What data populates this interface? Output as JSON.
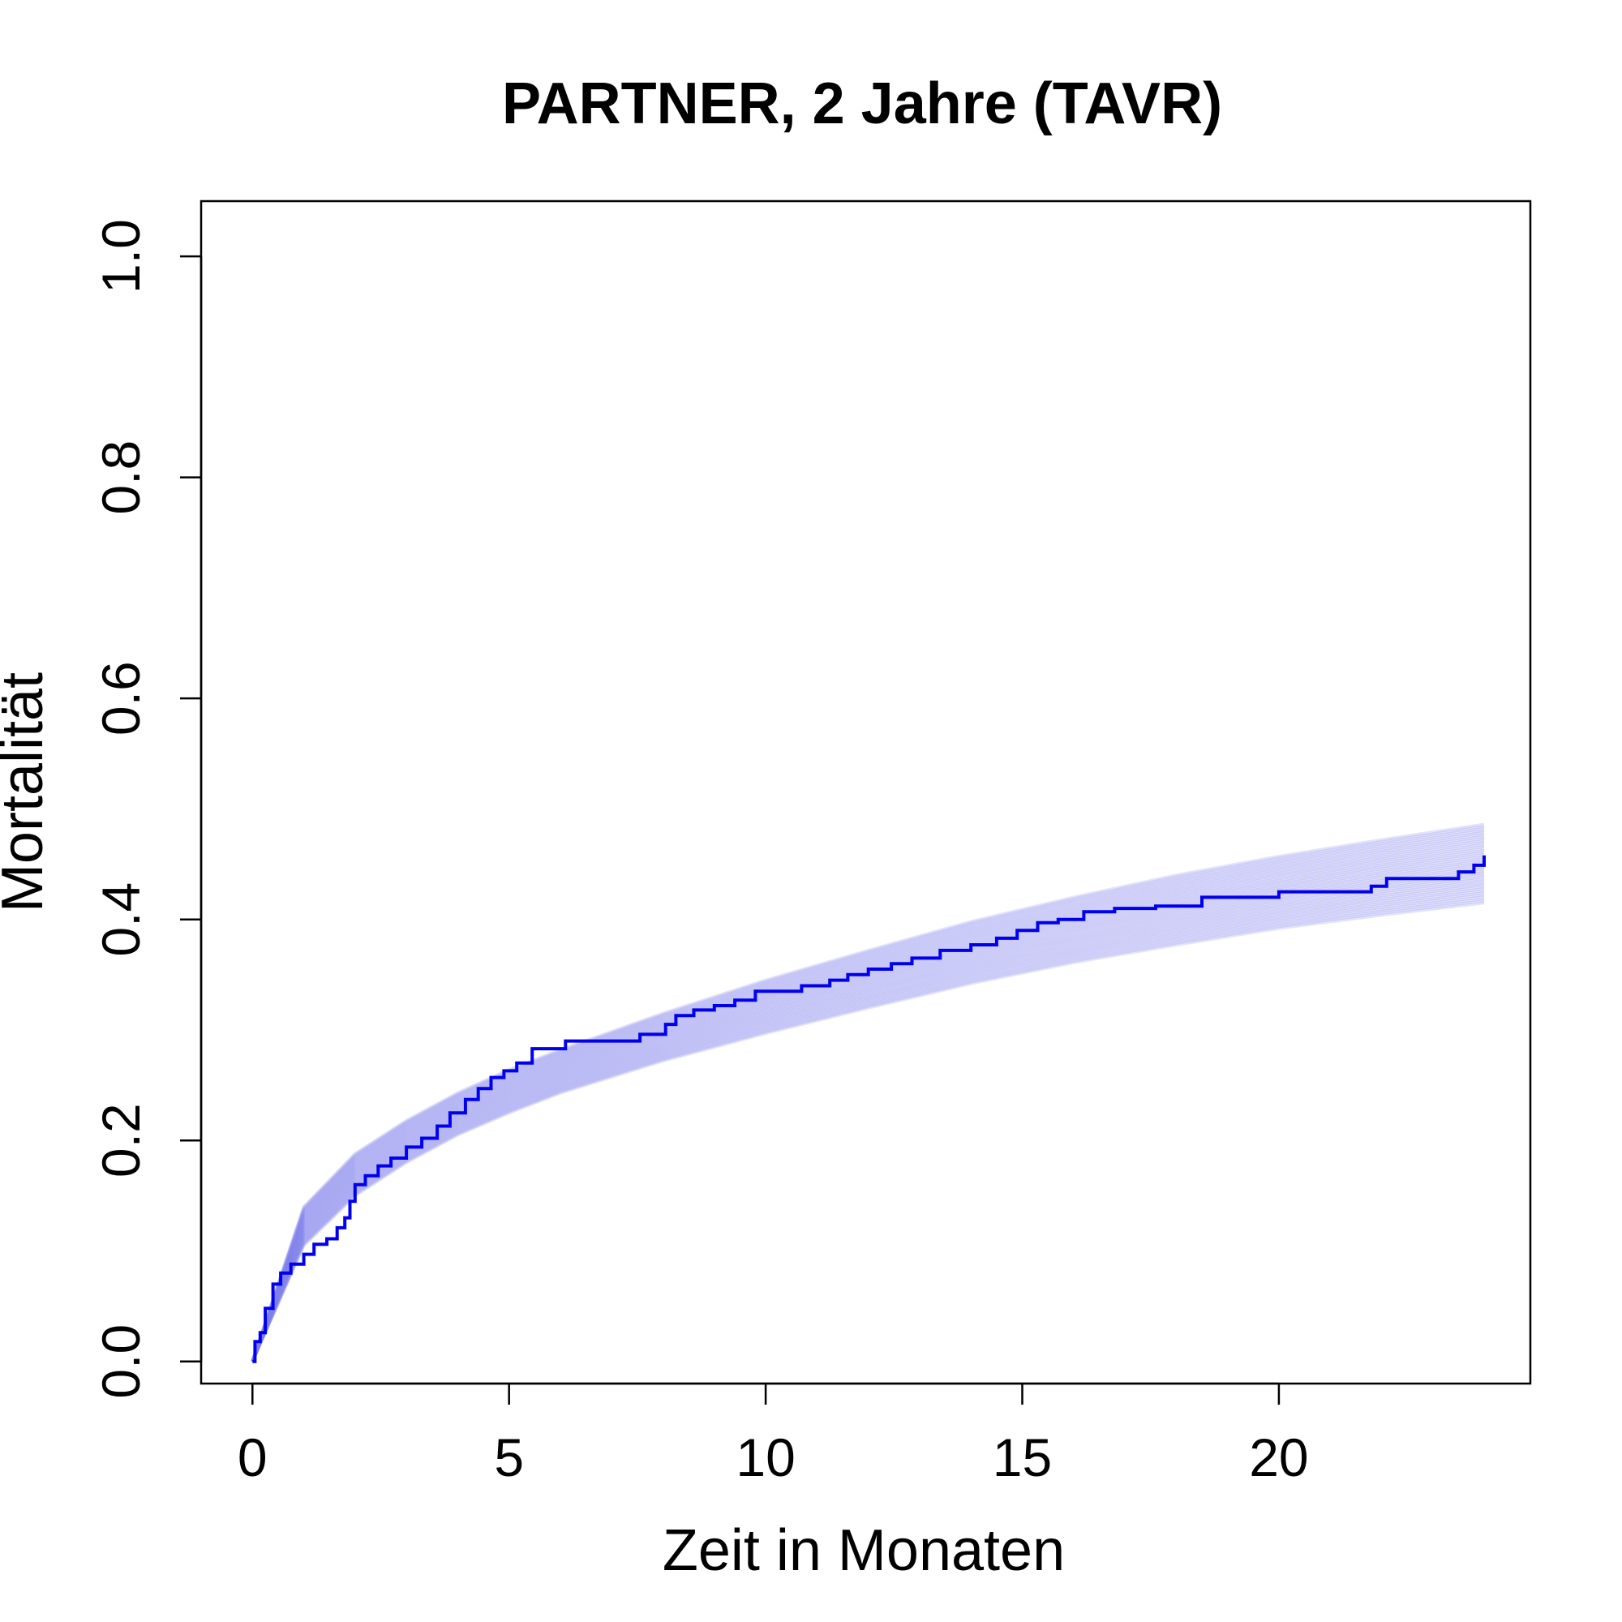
{
  "chart_data": {
    "type": "line",
    "title": "PARTNER, 2 Jahre (TAVR)",
    "xlabel": "Zeit in Monaten",
    "ylabel": "Mortalität",
    "xlim": [
      -1,
      24.9
    ],
    "ylim": [
      -0.02,
      1.05
    ],
    "x_ticks": [
      0,
      5,
      10,
      15,
      20
    ],
    "x_tick_labels": [
      "0",
      "5",
      "10",
      "15",
      "20"
    ],
    "y_ticks": [
      0.0,
      0.2,
      0.4,
      0.6,
      0.8,
      1.0
    ],
    "y_tick_labels": [
      "0.0",
      "0.2",
      "0.4",
      "0.6",
      "0.8",
      "1.0"
    ],
    "grid": false,
    "legend": "none",
    "colors": {
      "observed": "#0000ee",
      "simulated": "#8080ee"
    },
    "simulated_band": {
      "x": [
        0,
        1,
        2,
        3,
        4,
        5,
        6,
        8,
        10,
        12,
        14,
        16,
        18,
        20,
        22,
        24
      ],
      "lower": [
        0,
        0.105,
        0.15,
        0.18,
        0.205,
        0.225,
        0.243,
        0.272,
        0.297,
        0.32,
        0.342,
        0.361,
        0.377,
        0.392,
        0.404,
        0.415
      ],
      "upper": [
        0,
        0.14,
        0.188,
        0.218,
        0.243,
        0.264,
        0.282,
        0.315,
        0.345,
        0.372,
        0.398,
        0.42,
        0.44,
        0.457,
        0.472,
        0.486
      ],
      "count": 40
    },
    "series": [
      {
        "style": "step",
        "x": [
          0,
          0.05,
          0.15,
          0.25,
          0.4,
          0.55,
          0.75,
          1.0,
          1.2,
          1.45,
          1.65,
          1.8,
          1.9,
          2.0,
          2.2,
          2.45,
          2.7,
          3.0,
          3.3,
          3.6,
          3.85,
          4.15,
          4.4,
          4.65,
          4.9,
          5.15,
          5.45,
          5.7,
          6.1,
          6.5,
          7.0,
          7.55,
          8.05,
          8.25,
          8.6,
          9.0,
          9.4,
          9.8,
          10.25,
          10.7,
          11.25,
          11.6,
          12.0,
          12.45,
          12.85,
          13.4,
          14.0,
          14.5,
          14.9,
          15.3,
          15.7,
          16.2,
          16.8,
          17.6,
          18.5,
          20.0,
          21.8,
          22.1,
          23.5,
          23.8,
          24.0
        ],
        "y": [
          0.0,
          0.018,
          0.026,
          0.048,
          0.07,
          0.08,
          0.088,
          0.097,
          0.106,
          0.111,
          0.121,
          0.13,
          0.145,
          0.16,
          0.168,
          0.177,
          0.184,
          0.194,
          0.202,
          0.213,
          0.225,
          0.237,
          0.247,
          0.257,
          0.263,
          0.27,
          0.283,
          0.283,
          0.29,
          0.29,
          0.29,
          0.296,
          0.305,
          0.313,
          0.318,
          0.322,
          0.327,
          0.335,
          0.335,
          0.34,
          0.345,
          0.35,
          0.355,
          0.36,
          0.365,
          0.372,
          0.377,
          0.383,
          0.39,
          0.397,
          0.4,
          0.407,
          0.41,
          0.412,
          0.42,
          0.425,
          0.43,
          0.437,
          0.443,
          0.449,
          0.458
        ]
      }
    ]
  }
}
